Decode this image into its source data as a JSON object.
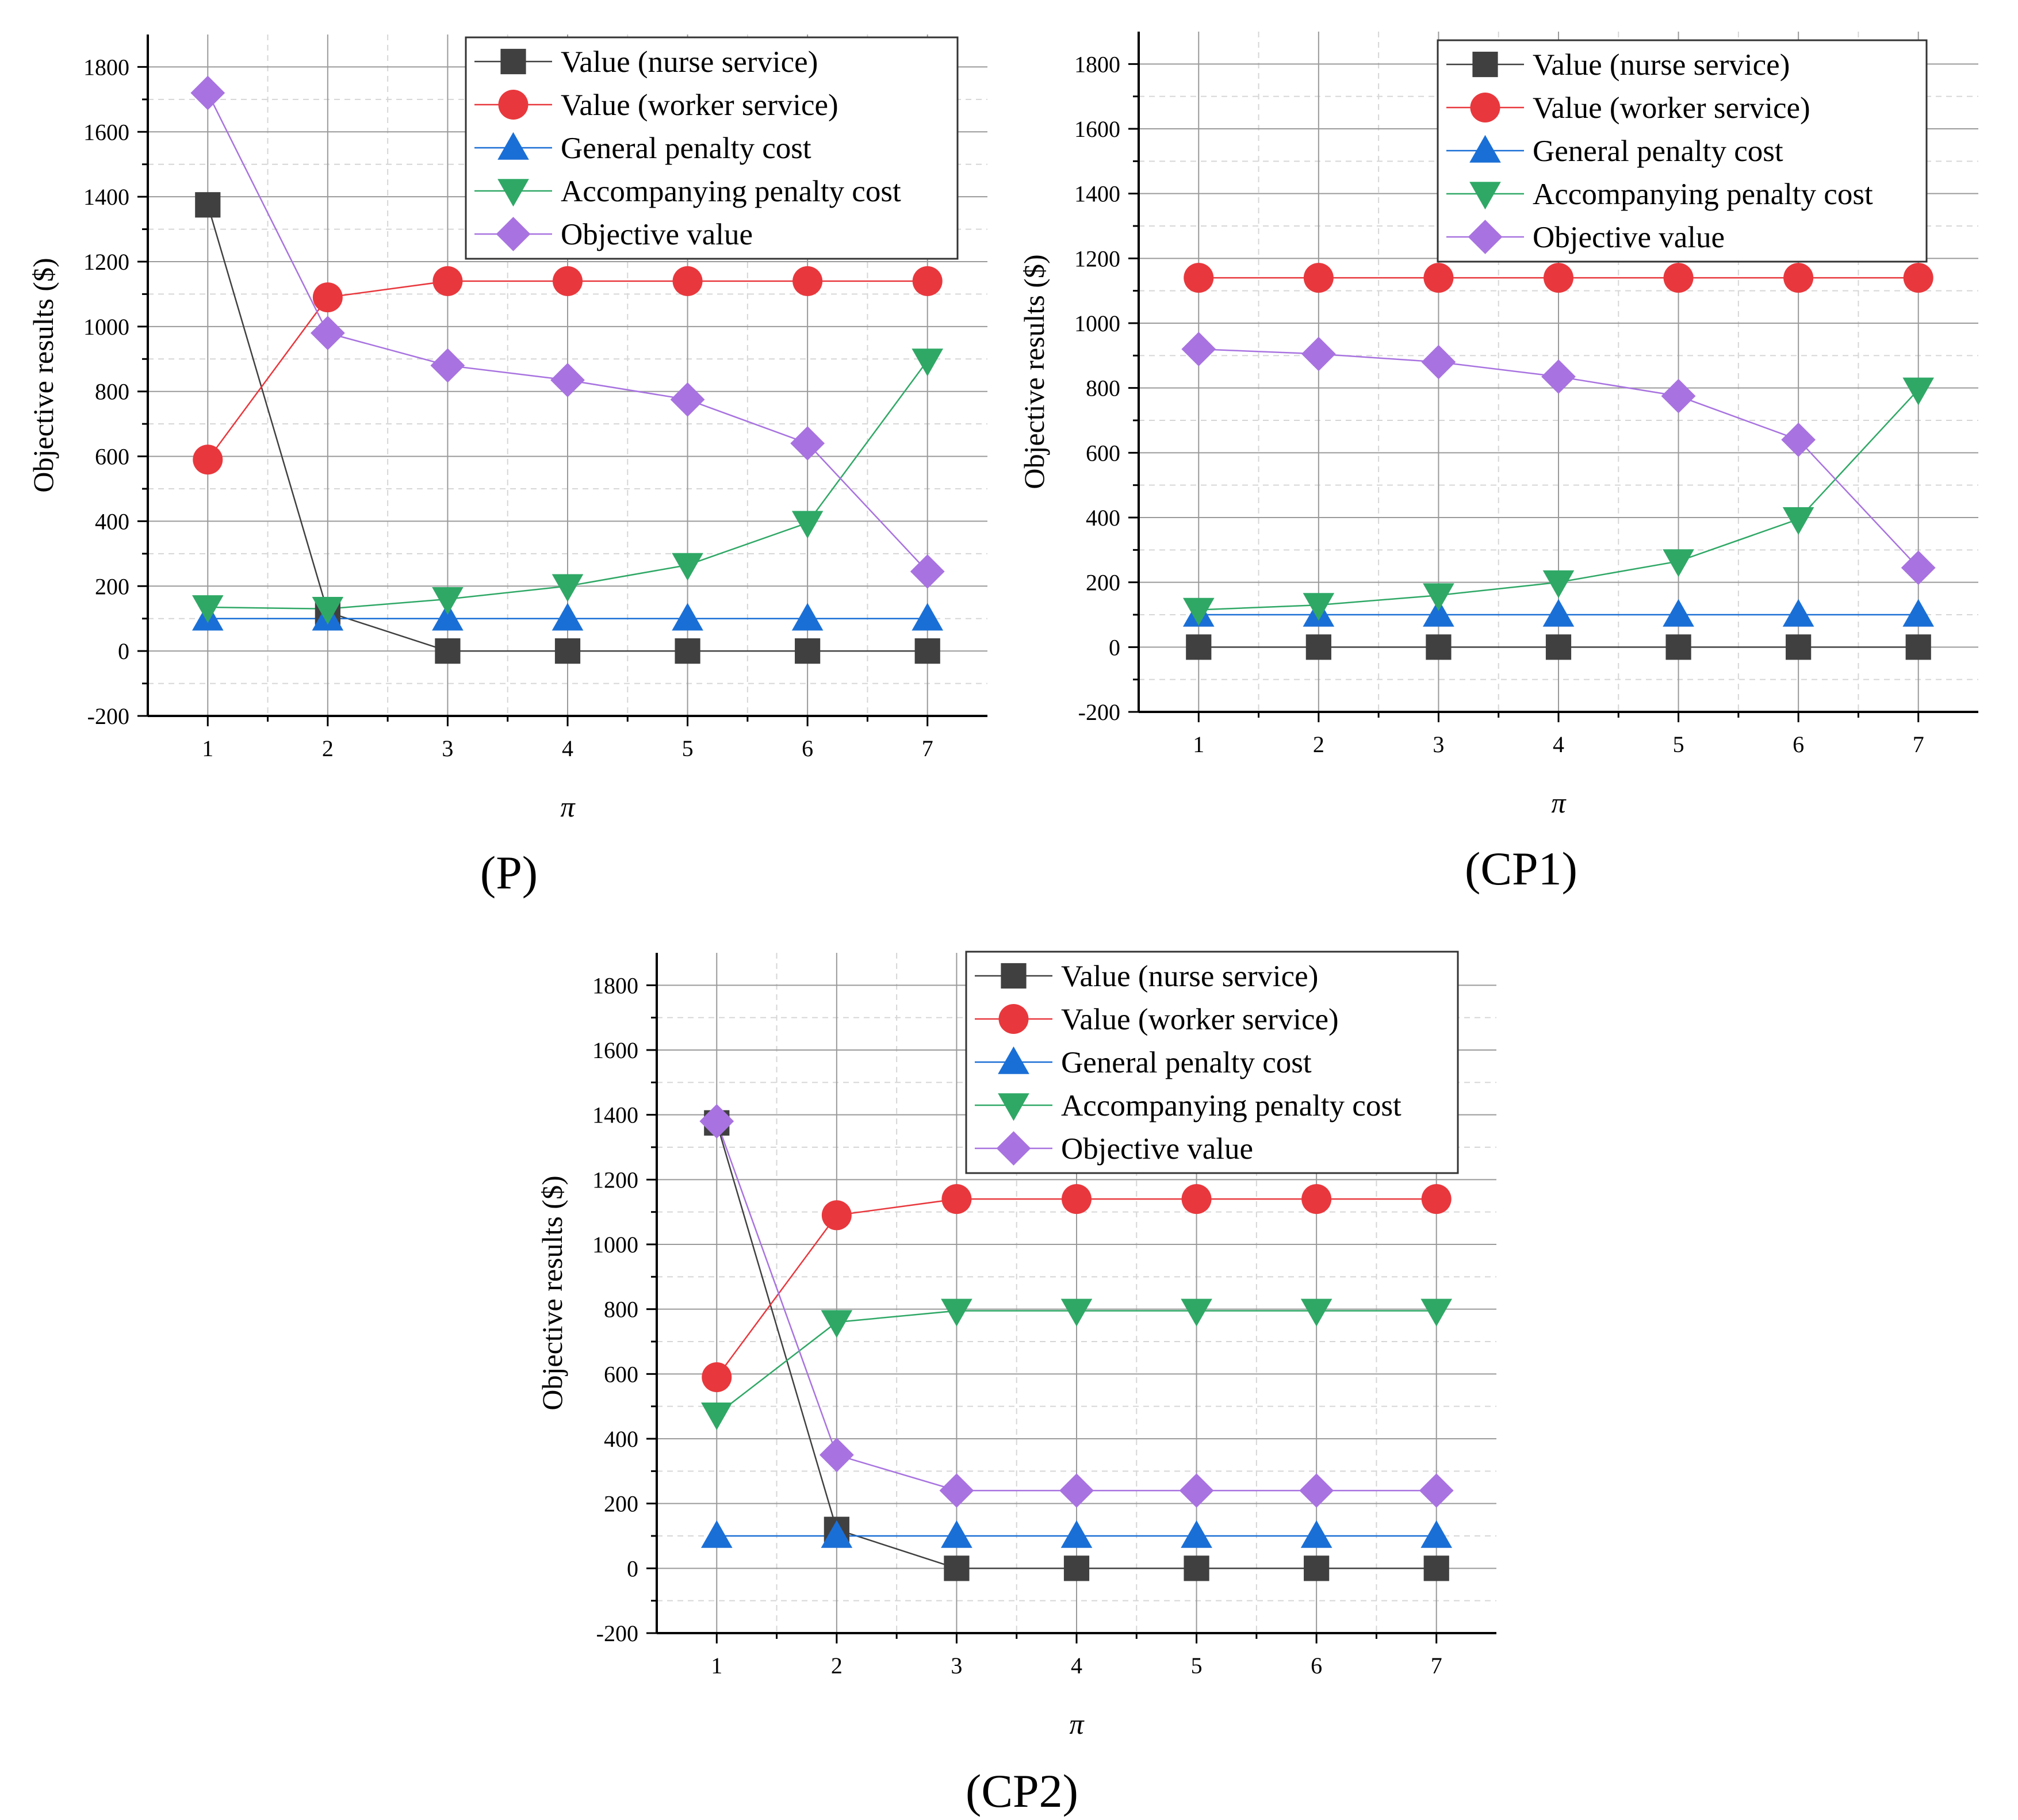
{
  "figure": {
    "panels": [
      "P",
      "CP1",
      "CP2"
    ]
  },
  "colors": {
    "nurse": "#404040",
    "worker": "#e8383d",
    "general": "#1a6fd6",
    "accompanying": "#2fa866",
    "objective": "#a873e0",
    "axis": "#000000",
    "grid_major": "#9a9a9a",
    "grid_minor": "#d6d6d6",
    "legend_border": "#333333"
  },
  "chart_data": [
    {
      "id": "P",
      "type": "line",
      "caption": "(P)",
      "xlabel": "π",
      "ylabel": "Objective results ($)",
      "x": [
        1,
        2,
        3,
        4,
        5,
        6,
        7
      ],
      "xlim": [
        0.5,
        7.5
      ],
      "ylim": [
        -200,
        1900
      ],
      "yticks": [
        -200,
        0,
        200,
        400,
        600,
        800,
        1000,
        1200,
        1400,
        1600,
        1800
      ],
      "legend_position": "top-right",
      "series": [
        {
          "key": "nurse",
          "name": "Value (nurse service)",
          "marker": "square",
          "values": [
            1375,
            120,
            0,
            0,
            0,
            0,
            0
          ]
        },
        {
          "key": "worker",
          "name": "Value (worker service)",
          "marker": "circle",
          "values": [
            590,
            1090,
            1140,
            1140,
            1140,
            1140,
            1140
          ]
        },
        {
          "key": "general",
          "name": "General penalty cost",
          "marker": "triangle-up",
          "values": [
            100,
            100,
            100,
            100,
            100,
            100,
            100
          ]
        },
        {
          "key": "accompanying",
          "name": "Accompanying penalty cost",
          "marker": "triangle-down",
          "values": [
            135,
            130,
            160,
            200,
            265,
            395,
            895
          ]
        },
        {
          "key": "objective",
          "name": "Objective value",
          "marker": "diamond",
          "values": [
            1720,
            980,
            880,
            835,
            775,
            640,
            245
          ]
        }
      ]
    },
    {
      "id": "CP1",
      "type": "line",
      "caption": "(CP1)",
      "xlabel": "π",
      "ylabel": "Objective results ($)",
      "x": [
        1,
        2,
        3,
        4,
        5,
        6,
        7
      ],
      "xlim": [
        0.5,
        7.5
      ],
      "ylim": [
        -200,
        1900
      ],
      "yticks": [
        -200,
        0,
        200,
        400,
        600,
        800,
        1000,
        1200,
        1400,
        1600,
        1800
      ],
      "legend_position": "top-right",
      "series": [
        {
          "key": "nurse",
          "name": "Value (nurse service)",
          "marker": "square",
          "values": [
            0,
            0,
            0,
            0,
            0,
            0,
            0
          ]
        },
        {
          "key": "worker",
          "name": "Value (worker service)",
          "marker": "circle",
          "values": [
            1140,
            1140,
            1140,
            1140,
            1140,
            1140,
            1140
          ]
        },
        {
          "key": "general",
          "name": "General penalty cost",
          "marker": "triangle-up",
          "values": [
            100,
            100,
            100,
            100,
            100,
            100,
            100
          ]
        },
        {
          "key": "accompanying",
          "name": "Accompanying penalty cost",
          "marker": "triangle-down",
          "values": [
            115,
            130,
            160,
            200,
            265,
            395,
            795
          ]
        },
        {
          "key": "objective",
          "name": "Objective value",
          "marker": "diamond",
          "values": [
            920,
            905,
            880,
            835,
            775,
            640,
            245
          ]
        }
      ]
    },
    {
      "id": "CP2",
      "type": "line",
      "caption": "(CP2)",
      "xlabel": "π",
      "ylabel": "Objective results ($)",
      "x": [
        1,
        2,
        3,
        4,
        5,
        6,
        7
      ],
      "xlim": [
        0.5,
        7.5
      ],
      "ylim": [
        -200,
        1900
      ],
      "yticks": [
        -200,
        0,
        200,
        400,
        600,
        800,
        1000,
        1200,
        1400,
        1600,
        1800
      ],
      "legend_position": "top-right",
      "series": [
        {
          "key": "nurse",
          "name": "Value (nurse service)",
          "marker": "square",
          "values": [
            1375,
            120,
            0,
            0,
            0,
            0,
            0
          ]
        },
        {
          "key": "worker",
          "name": "Value (worker service)",
          "marker": "circle",
          "values": [
            590,
            1090,
            1140,
            1140,
            1140,
            1140,
            1140
          ]
        },
        {
          "key": "general",
          "name": "General penalty cost",
          "marker": "triangle-up",
          "values": [
            100,
            100,
            100,
            100,
            100,
            100,
            100
          ]
        },
        {
          "key": "accompanying",
          "name": "Accompanying penalty cost",
          "marker": "triangle-down",
          "values": [
            475,
            760,
            795,
            795,
            795,
            795,
            795
          ]
        },
        {
          "key": "objective",
          "name": "Objective value",
          "marker": "diamond",
          "values": [
            1380,
            350,
            240,
            240,
            240,
            240,
            240
          ]
        }
      ]
    }
  ]
}
